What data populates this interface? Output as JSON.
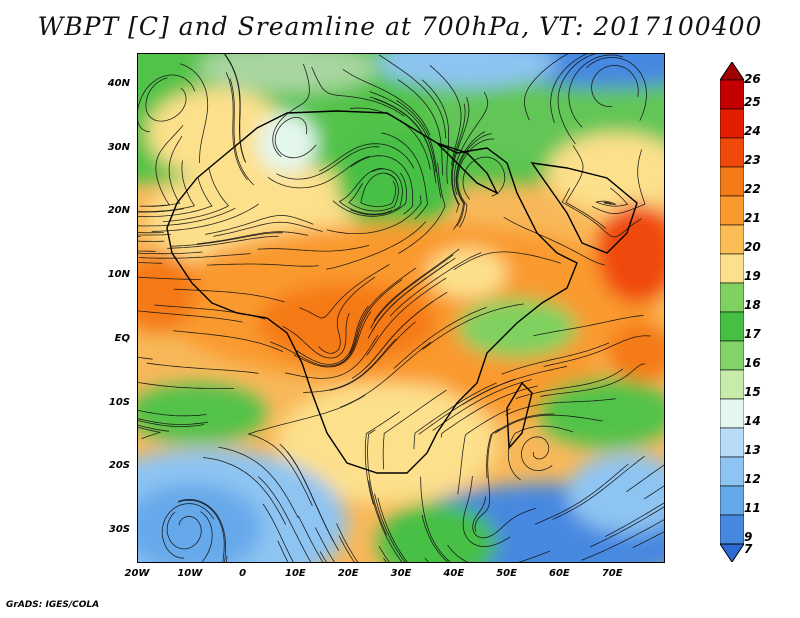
{
  "title": "WBPT [C] and Sreamline at 700hPa, VT: 2017100400",
  "footer": "GrADS: IGES/COLA",
  "map": {
    "lon_range": [
      -20,
      80
    ],
    "lat_range": [
      -35,
      45
    ],
    "lat_ticks": [
      {
        "label": "40N",
        "value": 40
      },
      {
        "label": "30N",
        "value": 30
      },
      {
        "label": "20N",
        "value": 20
      },
      {
        "label": "10N",
        "value": 10
      },
      {
        "label": "EQ",
        "value": 0
      },
      {
        "label": "10S",
        "value": -10
      },
      {
        "label": "20S",
        "value": -20
      },
      {
        "label": "30S",
        "value": -30
      }
    ],
    "lon_ticks": [
      {
        "label": "20W",
        "value": -20
      },
      {
        "label": "10W",
        "value": -10
      },
      {
        "label": "0",
        "value": 0
      },
      {
        "label": "10E",
        "value": 10
      },
      {
        "label": "20E",
        "value": 20
      },
      {
        "label": "30E",
        "value": 30
      },
      {
        "label": "40E",
        "value": 40
      },
      {
        "label": "50E",
        "value": 50
      },
      {
        "label": "60E",
        "value": 60
      },
      {
        "label": "70E",
        "value": 70
      }
    ],
    "colorbar": {
      "labels": [
        "26",
        "25",
        "24",
        "23",
        "22",
        "21",
        "20",
        "19",
        "18",
        "17",
        "16",
        "15",
        "14",
        "13",
        "12",
        "11",
        "9",
        "7"
      ],
      "colors": [
        "#a00000",
        "#c40000",
        "#e31d00",
        "#f04a0a",
        "#f57a18",
        "#fa9a2e",
        "#fbbd55",
        "#fde08c",
        "#7fd160",
        "#46c044",
        "#82d46a",
        "#c6ebaa",
        "#e4f7ee",
        "#b8dcf8",
        "#8ec4f2",
        "#66a9ea",
        "#4688e0",
        "#2c6bd4"
      ]
    }
  }
}
